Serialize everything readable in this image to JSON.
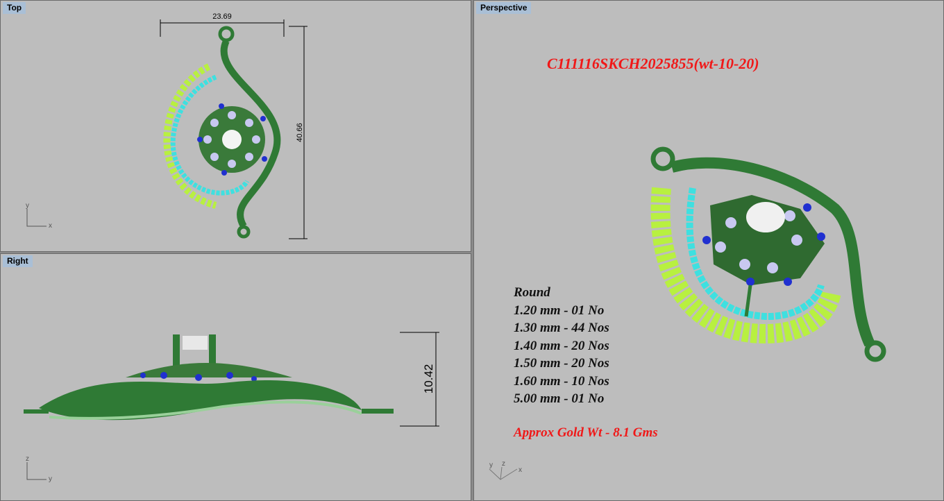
{
  "viewports": {
    "top": {
      "label": "Top",
      "dim_width": "23.69",
      "dim_height": "40.66",
      "axes": [
        "y",
        "x"
      ]
    },
    "right": {
      "label": "Right",
      "dim_height": "10.42",
      "axes": [
        "z",
        "y"
      ]
    },
    "perspective": {
      "label": "Perspective",
      "axes": [
        "y",
        "z",
        "x"
      ],
      "design_code": "C111116SKCH2025855(wt-10-20)",
      "stone_heading": "Round",
      "stones": [
        "1.20 mm - 01 No",
        "1.30 mm - 44 Nos",
        "1.40 mm - 20 Nos",
        "1.50 mm - 20 Nos",
        "1.60 mm - 10 Nos",
        "5.00 mm - 01 No"
      ],
      "gold_weight": "Approx Gold Wt - 8.1 Gms"
    }
  },
  "colors": {
    "metal": "#2f7a35",
    "accent_text": "#f01818",
    "viewport_bg": "#bdbdbd",
    "stone_cyan": "#3ee0e0",
    "stone_lime": "#b8f040",
    "stone_blue": "#2030d0"
  }
}
